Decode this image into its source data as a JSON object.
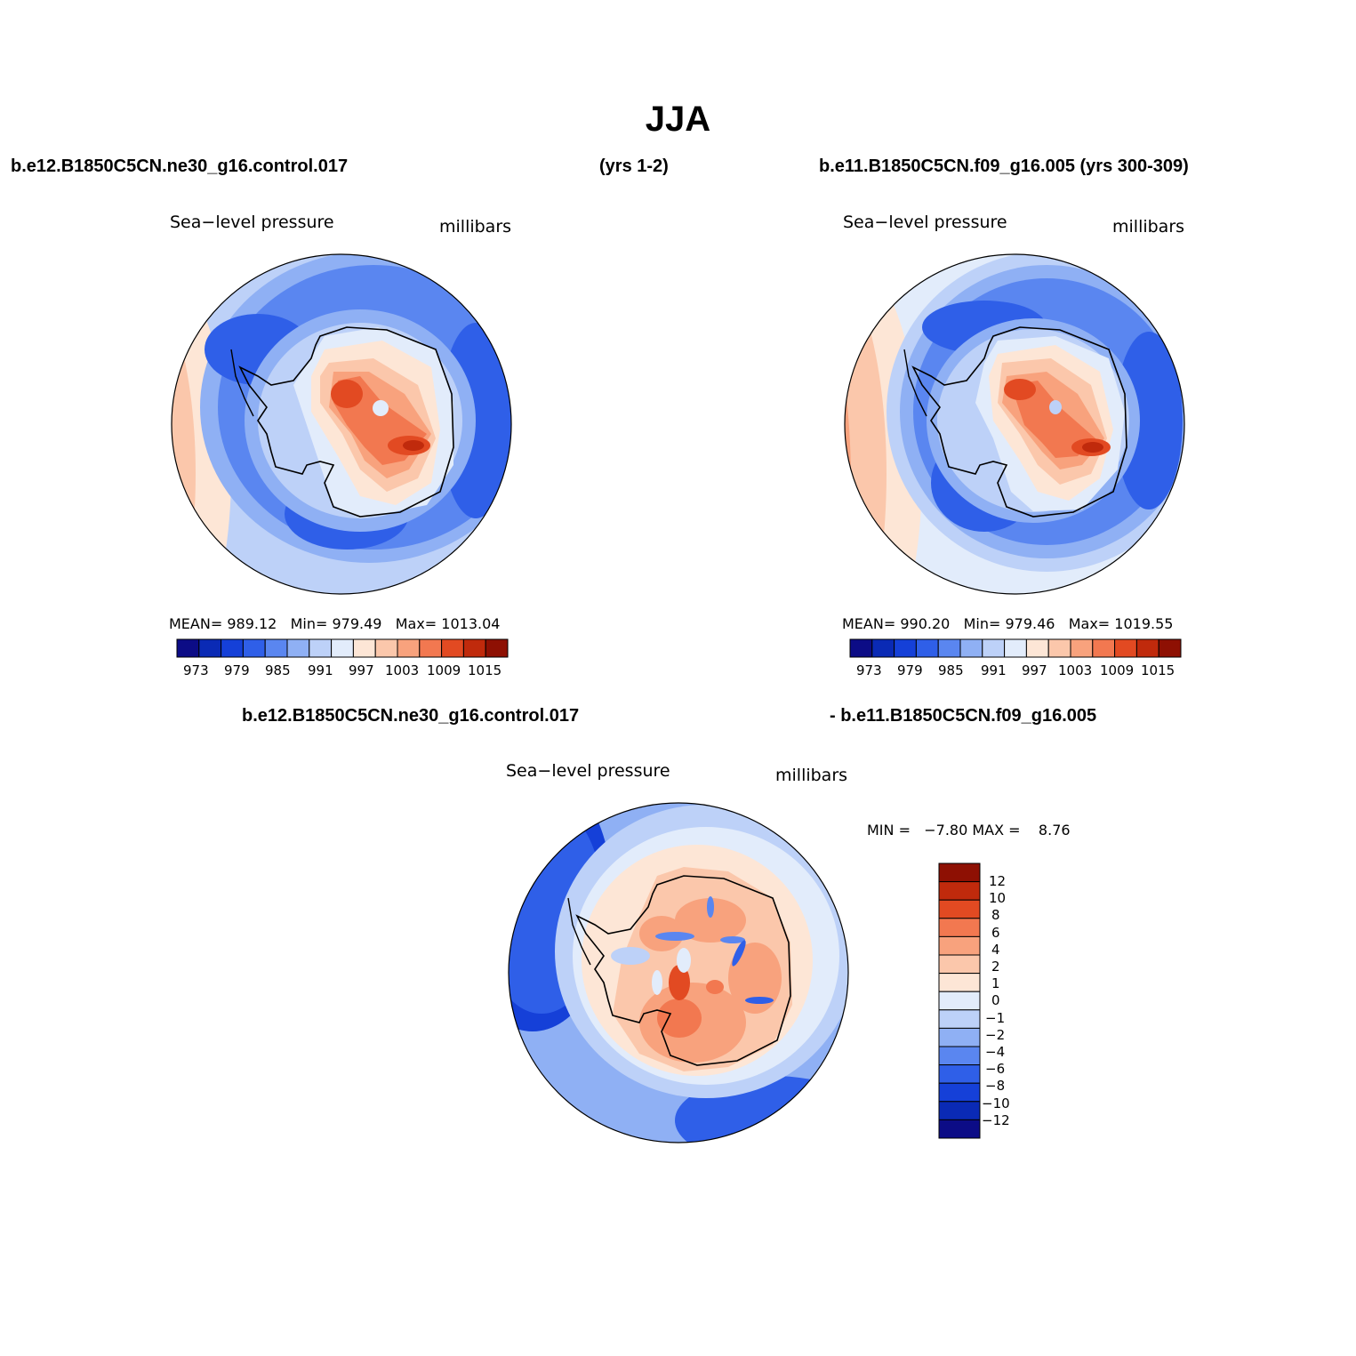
{
  "title": "JJA",
  "case1": "b.e12.B1850C5CN.ne30_g16.control.017",
  "case1_years": "(yrs 1-2)",
  "case2_full": "b.e11.B1850C5CN.f09_g16.005 (yrs 300-309)",
  "diff_title_a": "b.e12.B1850C5CN.ne30_g16.control.017",
  "diff_title_b": "- b.e11.B1850C5CN.f09_g16.005",
  "palette": {
    "abs": [
      "#0c0c86",
      "#0a2ab5",
      "#1540d8",
      "#2f5fe8",
      "#5a86f0",
      "#8fb0f4",
      "#bdd1f8",
      "#e2ecfb",
      "#fde6d6",
      "#fbc7ab",
      "#f8a27d",
      "#f27850",
      "#e24a22",
      "#c02a0c",
      "#8e1003"
    ],
    "diff": [
      "#0c0c86",
      "#0a2ab5",
      "#1540d8",
      "#2f5fe8",
      "#5a86f0",
      "#8fb0f4",
      "#bdd1f8",
      "#e2ecfb",
      "#fde6d6",
      "#fbc7ab",
      "#f8a27d",
      "#f27850",
      "#e24a22",
      "#c02a0c",
      "#8e1003"
    ]
  },
  "panels": [
    {
      "variable": "Sea−level pressure",
      "units": "millibars",
      "mean_label": "MEAN=",
      "mean_value": "989.12",
      "min_label": "Min=",
      "min_value": "979.49",
      "max_label": "Max=",
      "max_value": "1013.04",
      "ticks": [
        "973",
        "979",
        "985",
        "991",
        "997",
        "1003",
        "1009",
        "1015"
      ]
    },
    {
      "variable": "Sea−level pressure",
      "units": "millibars",
      "mean_label": "MEAN=",
      "mean_value": "990.20",
      "min_label": "Min=",
      "min_value": "979.46",
      "max_label": "Max=",
      "max_value": "1019.55",
      "ticks": [
        "973",
        "979",
        "985",
        "991",
        "997",
        "1003",
        "1009",
        "1015"
      ]
    },
    {
      "variable": "Sea−level pressure",
      "units": "millibars",
      "min_label": "MIN =",
      "min_value": "−7.80",
      "max_label": "MAX =",
      "max_value": "8.76",
      "ticks": [
        "12",
        "10",
        "8",
        "6",
        "4",
        "2",
        "1",
        "0",
        "−1",
        "−2",
        "−4",
        "−6",
        "−8",
        "−10",
        "−12"
      ]
    }
  ]
}
